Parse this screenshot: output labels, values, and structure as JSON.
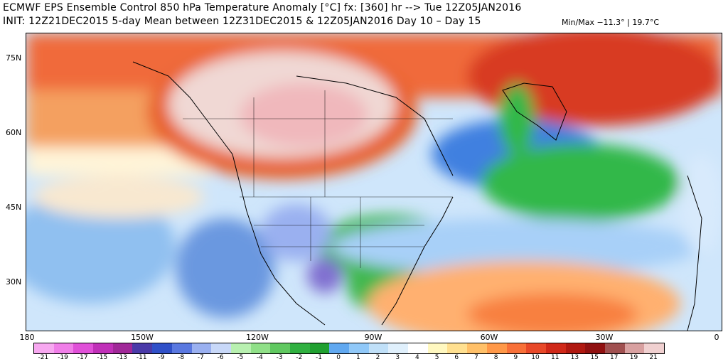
{
  "header": {
    "line1": "ECMWF EPS Ensemble Control 850 hPa Temperature Anomaly [°C] fx: [360] hr --> Tue 12Z05JAN2016",
    "line2": "INIT: 12Z21DEC2015 5-day Mean between 12Z31DEC2015 & 12Z05JAN2016    Day 10 – Day 15",
    "minmax": "Min/Max −11.3° | 19.7°C"
  },
  "map": {
    "lat_labels": [
      "75N",
      "60N",
      "45N",
      "30N"
    ],
    "lon_labels": [
      "180",
      "150W",
      "120W",
      "90W",
      "60W",
      "30W",
      "0"
    ],
    "field": "850 hPa temperature anomaly",
    "features": [
      "warm anomaly over northern Canada",
      "warm anomaly over Greenland",
      "cold anomaly over southern United States",
      "cold anomaly over North Atlantic",
      "warm anomaly over subtropical Atlantic"
    ]
  },
  "colorbar": {
    "labels": [
      "-21",
      "-19",
      "-17",
      "-15",
      "-13",
      "-11",
      "-9",
      "-8",
      "-7",
      "-6",
      "-5",
      "-4",
      "-3",
      "-2",
      "-1",
      "0",
      "1",
      "2",
      "3",
      "4",
      "5",
      "6",
      "7",
      "8",
      "9",
      "10",
      "11",
      "13",
      "15",
      "17",
      "19",
      "21"
    ],
    "colors": [
      "#f7a8f0",
      "#f07ee8",
      "#e050d8",
      "#c030b8",
      "#a02898",
      "#4a3aa8",
      "#3050c8",
      "#5a78e0",
      "#9ab0f0",
      "#c8d8f8",
      "#b8f0b0",
      "#90e088",
      "#60c860",
      "#30b040",
      "#20a030",
      "#60a8f0",
      "#90c8f8",
      "#c0e0f8",
      "#e0f0fc",
      "#ffffff",
      "#fff8c0",
      "#ffe090",
      "#ffc068",
      "#ff9848",
      "#f87038",
      "#e84828",
      "#d02818",
      "#b01810",
      "#901010",
      "#a05050",
      "#d8a0a0",
      "#f0d0d0"
    ]
  }
}
